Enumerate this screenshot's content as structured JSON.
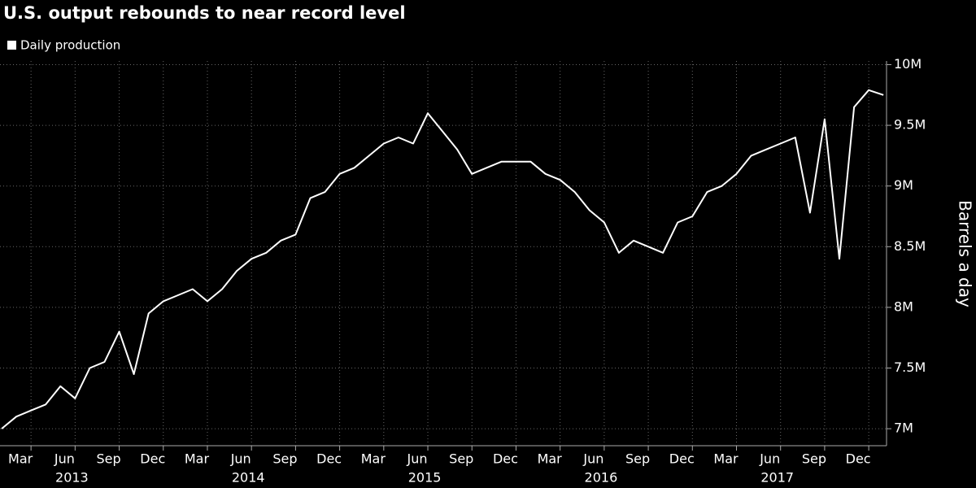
{
  "chart_data": {
    "type": "line",
    "title": "U.S. output rebounds to near record level",
    "y_label": "Barrels a day",
    "x": [
      "2013-01",
      "2013-02",
      "2013-03",
      "2013-04",
      "2013-05",
      "2013-06",
      "2013-07",
      "2013-08",
      "2013-09",
      "2013-10",
      "2013-11",
      "2013-12",
      "2014-01",
      "2014-02",
      "2014-03",
      "2014-04",
      "2014-05",
      "2014-06",
      "2014-07",
      "2014-08",
      "2014-09",
      "2014-10",
      "2014-11",
      "2014-12",
      "2015-01",
      "2015-02",
      "2015-03",
      "2015-04",
      "2015-05",
      "2015-06",
      "2015-07",
      "2015-08",
      "2015-09",
      "2015-10",
      "2015-11",
      "2015-12",
      "2016-01",
      "2016-02",
      "2016-03",
      "2016-04",
      "2016-05",
      "2016-06",
      "2016-07",
      "2016-08",
      "2016-09",
      "2016-10",
      "2016-11",
      "2016-12",
      "2017-01",
      "2017-02",
      "2017-03",
      "2017-04",
      "2017-05",
      "2017-06",
      "2017-07",
      "2017-08",
      "2017-09",
      "2017-10",
      "2017-11",
      "2017-12",
      "2018-01"
    ],
    "series": [
      {
        "name": "Daily production",
        "color": "#ffffff",
        "values": [
          7.0,
          7.1,
          7.15,
          7.2,
          7.35,
          7.25,
          7.5,
          7.55,
          7.8,
          7.45,
          7.95,
          8.05,
          8.1,
          8.15,
          8.05,
          8.15,
          8.3,
          8.4,
          8.45,
          8.55,
          8.6,
          8.9,
          8.95,
          9.1,
          9.15,
          9.25,
          9.35,
          9.4,
          9.35,
          9.6,
          9.45,
          9.3,
          9.1,
          9.15,
          9.2,
          9.2,
          9.2,
          9.1,
          9.05,
          8.95,
          8.8,
          8.7,
          8.45,
          8.55,
          8.5,
          8.45,
          8.7,
          8.75,
          8.95,
          9.0,
          9.1,
          9.25,
          9.3,
          9.35,
          9.4,
          8.78,
          9.55,
          8.4,
          9.65,
          9.79,
          9.75
        ]
      }
    ],
    "ylim": [
      6.86,
      10.03
    ],
    "yticks": [
      {
        "value": 7,
        "label": "7M"
      },
      {
        "value": 7.5,
        "label": "7.5M"
      },
      {
        "value": 8,
        "label": "8M"
      },
      {
        "value": 8.5,
        "label": "8.5M"
      },
      {
        "value": 9,
        "label": "9M"
      },
      {
        "value": 9.5,
        "label": "9.5M"
      },
      {
        "value": 10,
        "label": "10M"
      }
    ],
    "xticks": [
      {
        "value": "2013-03",
        "label": "Mar"
      },
      {
        "value": "2013-06",
        "label": "Jun"
      },
      {
        "value": "2013-09",
        "label": "Sep"
      },
      {
        "value": "2013-12",
        "label": "Dec"
      },
      {
        "value": "2014-03",
        "label": "Mar"
      },
      {
        "value": "2014-06",
        "label": "Jun"
      },
      {
        "value": "2014-09",
        "label": "Sep"
      },
      {
        "value": "2014-12",
        "label": "Dec"
      },
      {
        "value": "2015-03",
        "label": "Mar"
      },
      {
        "value": "2015-06",
        "label": "Jun"
      },
      {
        "value": "2015-09",
        "label": "Sep"
      },
      {
        "value": "2015-12",
        "label": "Dec"
      },
      {
        "value": "2016-03",
        "label": "Mar"
      },
      {
        "value": "2016-06",
        "label": "Jun"
      },
      {
        "value": "2016-09",
        "label": "Sep"
      },
      {
        "value": "2016-12",
        "label": "Dec"
      },
      {
        "value": "2017-03",
        "label": "Mar"
      },
      {
        "value": "2017-06",
        "label": "Jun"
      },
      {
        "value": "2017-09",
        "label": "Sep"
      },
      {
        "value": "2017-12",
        "label": "Dec"
      }
    ],
    "years": [
      "2013",
      "2014",
      "2015",
      "2016",
      "2017"
    ],
    "grid": true
  }
}
